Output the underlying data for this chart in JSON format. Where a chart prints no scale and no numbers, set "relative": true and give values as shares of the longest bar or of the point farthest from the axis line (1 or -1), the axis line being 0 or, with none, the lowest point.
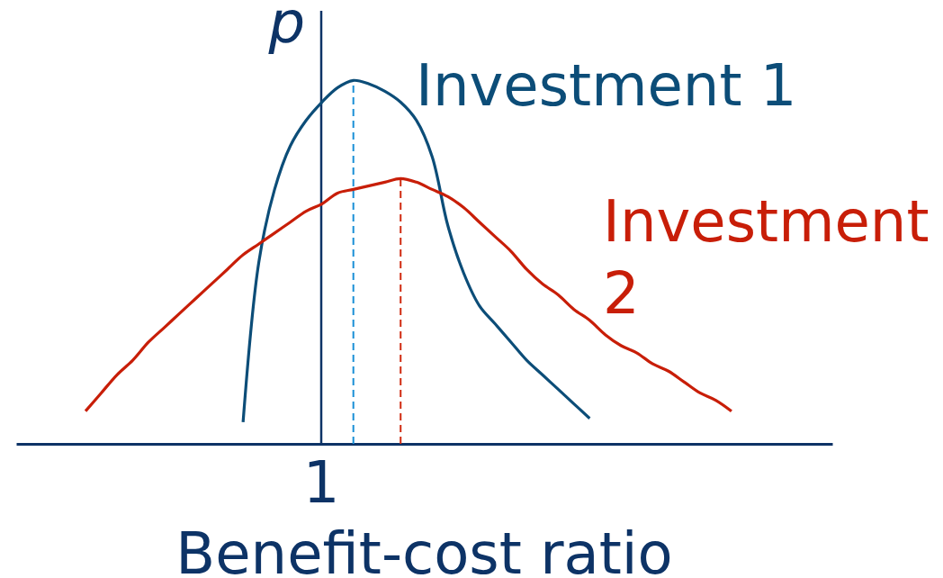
{
  "chart_data": {
    "type": "line",
    "relative": true,
    "xlabel": "Benefit-cost ratio",
    "ylabel": "p",
    "categories": [
      null,
      null,
      null,
      null,
      null,
      null,
      null,
      null,
      null,
      null,
      null,
      null,
      null,
      null,
      null,
      null,
      null,
      null,
      null,
      null,
      null,
      null,
      null,
      null,
      null,
      null,
      null,
      null,
      null,
      null,
      null,
      null,
      null,
      null,
      null,
      null,
      null,
      null,
      null,
      null,
      null,
      null,
      null,
      null,
      null,
      null,
      null,
      null,
      null,
      null,
      null,
      null
    ],
    "annotations": [
      "1"
    ],
    "series": [
      {
        "name": "Investment 1",
        "color": "#0c4d78",
        "values": [
          null,
          null,
          null,
          null,
          null,
          null,
          null,
          null,
          null,
          null,
          null,
          null,
          null,
          null,
          0.06,
          0.5,
          0.7,
          0.82,
          0.89,
          0.94,
          0.98,
          1,
          0.99,
          0.97,
          0.94,
          0.89,
          0.79,
          0.6,
          0.47,
          0.38,
          0.33,
          0.28,
          0.23,
          0.19,
          0.15,
          0.11,
          0.07,
          null,
          null,
          null,
          null,
          null,
          null,
          null,
          null,
          null,
          null,
          null,
          null,
          null,
          null,
          null
        ]
      },
      {
        "name": "Investment 2",
        "color": "#c81e08",
        "values": [
          null,
          null,
          null,
          null,
          0.09,
          0.14,
          0.19,
          0.23,
          0.28,
          0.32,
          0.36,
          0.4,
          0.44,
          0.48,
          0.52,
          0.55,
          0.58,
          0.61,
          0.64,
          0.66,
          0.69,
          0.7,
          0.71,
          0.72,
          0.73,
          0.72,
          0.7,
          0.68,
          0.65,
          0.61,
          0.57,
          0.53,
          0.48,
          0.44,
          0.41,
          0.37,
          0.34,
          0.3,
          0.27,
          0.25,
          0.22,
          0.2,
          0.17,
          0.14,
          0.12,
          0.09,
          null,
          null,
          null,
          null,
          null,
          null
        ]
      }
    ]
  }
}
